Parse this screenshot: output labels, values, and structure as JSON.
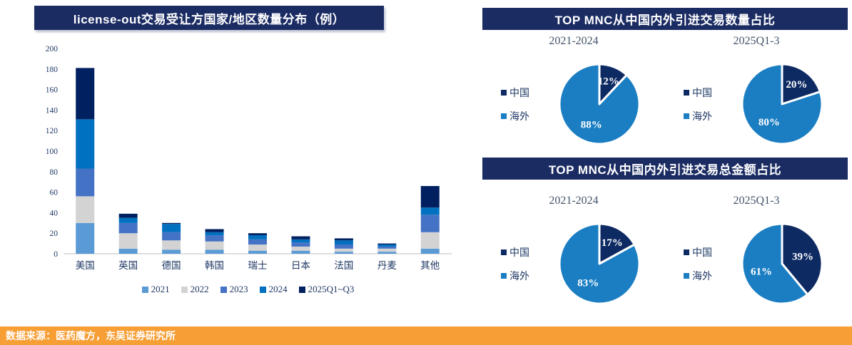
{
  "left_panel": {
    "title": "license-out交易受让方国家/地区数量分布（例）"
  },
  "right_panel": {
    "section1_title": "TOP MNC从中国内外引进交易数量占比",
    "section2_title": "TOP MNC从中国内外引进交易总金额占比"
  },
  "source_bar": {
    "text": "数据来源：医药魔方，东吴证券研究所",
    "background": "#F79E35"
  },
  "colors": {
    "title_bar_bg": "#1B2C63",
    "axis_text": "#1F3864",
    "pie_china": "#0E2A63",
    "pie_overseas": "#1B7EC3"
  },
  "chart_data": [
    {
      "type": "bar",
      "stacked": true,
      "title": "license-out交易受让方国家/地区数量分布（例）",
      "categories": [
        "美国",
        "英国",
        "德国",
        "韩国",
        "瑞士",
        "日本",
        "法国",
        "丹麦",
        "其他"
      ],
      "series": [
        {
          "name": "2021",
          "color": "#5B9BD5",
          "values": [
            30,
            5,
            4,
            4,
            3,
            3,
            2,
            2,
            5
          ]
        },
        {
          "name": "2022",
          "color": "#D3D3D3",
          "values": [
            26,
            15,
            9,
            8,
            6,
            4,
            3,
            3,
            16
          ]
        },
        {
          "name": "2023",
          "color": "#4472C4",
          "values": [
            27,
            10,
            8,
            6,
            5,
            4,
            4,
            2,
            17
          ]
        },
        {
          "name": "2024",
          "color": "#0070C0",
          "values": [
            48,
            5,
            8,
            3,
            4,
            3,
            4,
            2,
            7
          ]
        },
        {
          "name": "2025Q1~Q3",
          "color": "#002060",
          "values": [
            50,
            4,
            1,
            3,
            2,
            3,
            2,
            1,
            21
          ]
        }
      ],
      "ylabel": "",
      "xlabel": "",
      "ylim": [
        0,
        200
      ],
      "ytick_step": 20,
      "grid": false,
      "legend_position": "bottom"
    },
    {
      "type": "pie",
      "section": "交易数量占比",
      "title": "2021-2024",
      "labels": [
        "中国",
        "海外"
      ],
      "values": [
        12,
        88
      ],
      "value_labels": [
        "12%",
        "88%"
      ],
      "colors": [
        "#0E2A63",
        "#1B7EC3"
      ],
      "legend_position": "left"
    },
    {
      "type": "pie",
      "section": "交易数量占比",
      "title": "2025Q1-3",
      "labels": [
        "中国",
        "海外"
      ],
      "values": [
        20,
        80
      ],
      "value_labels": [
        "20%",
        "80%"
      ],
      "colors": [
        "#0E2A63",
        "#1B7EC3"
      ],
      "legend_position": "left"
    },
    {
      "type": "pie",
      "section": "交易总金额占比",
      "title": "2021-2024",
      "labels": [
        "中国",
        "海外"
      ],
      "values": [
        17,
        83
      ],
      "value_labels": [
        "17%",
        "83%"
      ],
      "colors": [
        "#0E2A63",
        "#1B7EC3"
      ],
      "legend_position": "left"
    },
    {
      "type": "pie",
      "section": "交易总金额占比",
      "title": "2025Q1-3",
      "labels": [
        "中国",
        "海外"
      ],
      "values": [
        39,
        61
      ],
      "value_labels": [
        "39%",
        "61%"
      ],
      "colors": [
        "#0E2A63",
        "#1B7EC3"
      ],
      "legend_position": "left"
    }
  ]
}
